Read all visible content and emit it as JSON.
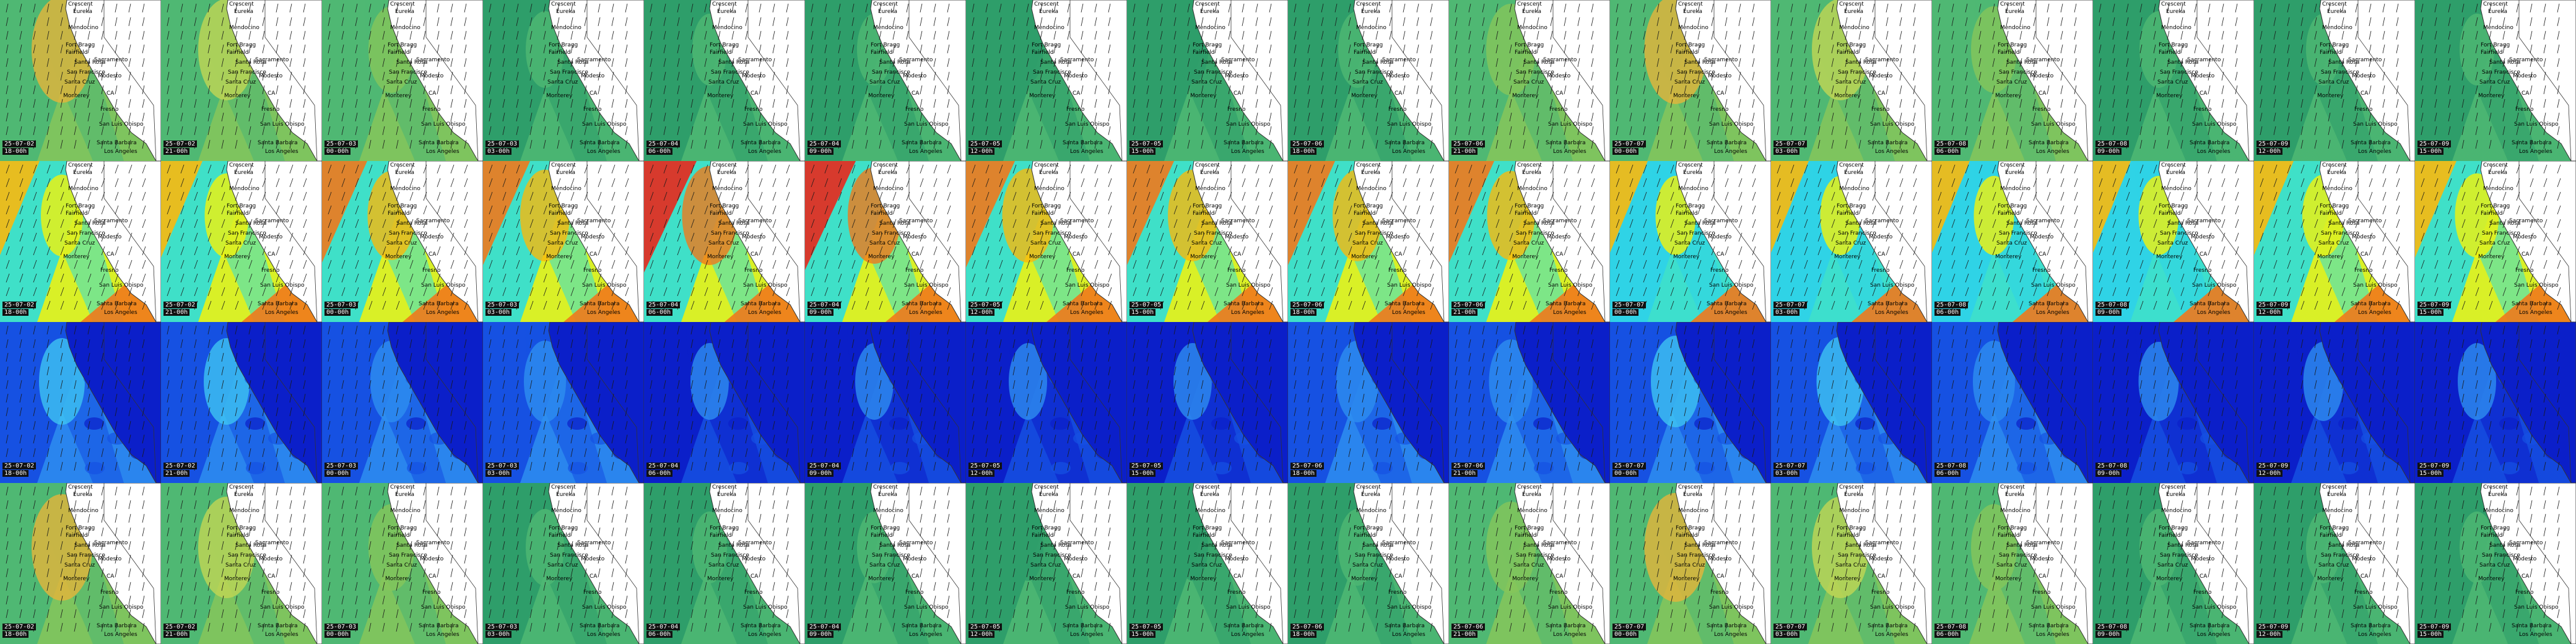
{
  "rows": [
    {
      "palette": "green",
      "frames": [
        {
          "date": "25-07-02",
          "time": "18-00h",
          "hot": 0.9
        },
        {
          "date": "25-07-02",
          "time": "21-00h",
          "hot": 0.8
        },
        {
          "date": "25-07-03",
          "time": "00-00h",
          "hot": 0.5
        },
        {
          "date": "25-07-03",
          "time": "03-00h",
          "hot": 0.3
        },
        {
          "date": "25-07-04",
          "time": "06-00h",
          "hot": 0.2
        },
        {
          "date": "25-07-04",
          "time": "09-00h",
          "hot": 0.2
        },
        {
          "date": "25-07-05",
          "time": "12-00h",
          "hot": 0.1
        },
        {
          "date": "25-07-05",
          "time": "15-00h",
          "hot": 0.1
        },
        {
          "date": "25-07-06",
          "time": "18-00h",
          "hot": 0.3
        },
        {
          "date": "25-07-06",
          "time": "21-00h",
          "hot": 0.6
        },
        {
          "date": "25-07-07",
          "time": "00-00h",
          "hot": 0.95
        },
        {
          "date": "25-07-07",
          "time": "03-00h",
          "hot": 0.8
        },
        {
          "date": "25-07-08",
          "time": "06-00h",
          "hot": 0.5
        },
        {
          "date": "25-07-08",
          "time": "09-00h",
          "hot": 0.3
        },
        {
          "date": "25-07-09",
          "time": "12-00h",
          "hot": 0.2
        },
        {
          "date": "25-07-09",
          "time": "15-00h",
          "hot": 0.2
        }
      ]
    },
    {
      "palette": "rainbow",
      "frames": [
        {
          "date": "25-07-02",
          "time": "18-00h",
          "hot": 0.4
        },
        {
          "date": "25-07-02",
          "time": "21-00h",
          "hot": 0.45
        },
        {
          "date": "25-07-03",
          "time": "00-00h",
          "hot": 0.55
        },
        {
          "date": "25-07-03",
          "time": "03-00h",
          "hot": 0.6
        },
        {
          "date": "25-07-04",
          "time": "06-00h",
          "hot": 0.75
        },
        {
          "date": "25-07-04",
          "time": "09-00h",
          "hot": 0.7
        },
        {
          "date": "25-07-05",
          "time": "12-00h",
          "hot": 0.65
        },
        {
          "date": "25-07-05",
          "time": "15-00h",
          "hot": 0.6
        },
        {
          "date": "25-07-06",
          "time": "18-00h",
          "hot": 0.6
        },
        {
          "date": "25-07-06",
          "time": "21-00h",
          "hot": 0.55
        },
        {
          "date": "25-07-07",
          "time": "00-00h",
          "hot": 0.35
        },
        {
          "date": "25-07-07",
          "time": "03-00h",
          "hot": 0.35
        },
        {
          "date": "25-07-08",
          "time": "06-00h",
          "hot": 0.35
        },
        {
          "date": "25-07-08",
          "time": "09-00h",
          "hot": 0.35
        },
        {
          "date": "25-07-09",
          "time": "12-00h",
          "hot": 0.4
        },
        {
          "date": "25-07-09",
          "time": "15-00h",
          "hot": 0.45
        }
      ]
    },
    {
      "palette": "blue",
      "frames": [
        {
          "date": "25-07-02",
          "time": "18-00h",
          "hot": 0.5
        },
        {
          "date": "25-07-02",
          "time": "21-00h",
          "hot": 0.5
        },
        {
          "date": "25-07-03",
          "time": "00-00h",
          "hot": 0.4
        },
        {
          "date": "25-07-03",
          "time": "03-00h",
          "hot": 0.4
        },
        {
          "date": "25-07-04",
          "time": "06-00h",
          "hot": 0.3
        },
        {
          "date": "25-07-04",
          "time": "09-00h",
          "hot": 0.3
        },
        {
          "date": "25-07-05",
          "time": "12-00h",
          "hot": 0.3
        },
        {
          "date": "25-07-05",
          "time": "15-00h",
          "hot": 0.3
        },
        {
          "date": "25-07-06",
          "time": "18-00h",
          "hot": 0.4
        },
        {
          "date": "25-07-06",
          "time": "21-00h",
          "hot": 0.45
        },
        {
          "date": "25-07-07",
          "time": "00-00h",
          "hot": 0.6
        },
        {
          "date": "25-07-07",
          "time": "03-00h",
          "hot": 0.55
        },
        {
          "date": "25-07-08",
          "time": "06-00h",
          "hot": 0.4
        },
        {
          "date": "25-07-08",
          "time": "09-00h",
          "hot": 0.35
        },
        {
          "date": "25-07-09",
          "time": "12-00h",
          "hot": 0.35
        },
        {
          "date": "25-07-09",
          "time": "15-00h",
          "hot": 0.3
        }
      ]
    },
    {
      "palette": "green",
      "frames": [
        {
          "date": "25-07-02",
          "time": "18-00h",
          "hot": 0.9
        },
        {
          "date": "25-07-02",
          "time": "21-00h",
          "hot": 0.8
        },
        {
          "date": "25-07-03",
          "time": "00-00h",
          "hot": 0.5
        },
        {
          "date": "25-07-03",
          "time": "03-00h",
          "hot": 0.3
        },
        {
          "date": "25-07-04",
          "time": "06-00h",
          "hot": 0.2
        },
        {
          "date": "25-07-04",
          "time": "09-00h",
          "hot": 0.2
        },
        {
          "date": "25-07-05",
          "time": "12-00h",
          "hot": 0.1
        },
        {
          "date": "25-07-05",
          "time": "15-00h",
          "hot": 0.1
        },
        {
          "date": "25-07-06",
          "time": "18-00h",
          "hot": 0.3
        },
        {
          "date": "25-07-06",
          "time": "21-00h",
          "hot": 0.6
        },
        {
          "date": "25-07-07",
          "time": "00-00h",
          "hot": 0.95
        },
        {
          "date": "25-07-07",
          "time": "03-00h",
          "hot": 0.8
        },
        {
          "date": "25-07-08",
          "time": "06-00h",
          "hot": 0.5
        },
        {
          "date": "25-07-08",
          "time": "09-00h",
          "hot": 0.3
        },
        {
          "date": "25-07-09",
          "time": "12-00h",
          "hot": 0.2
        },
        {
          "date": "25-07-09",
          "time": "15-00h",
          "hot": 0.2
        }
      ]
    }
  ],
  "cities": [
    "Crescent",
    "Eureka",
    "Mendocino",
    "Fort Bragg",
    "Fairfield",
    "Santa Rosa",
    "Sacramento",
    "San Francisco",
    "Modesto",
    "CA",
    "Santa Cruz",
    "Monterey",
    "Fresno",
    "San Luis Obispo",
    "Santa Barbara",
    "Los Angeles"
  ],
  "colors": {
    "green": [
      "#2e9e6a",
      "#4fb873",
      "#86c65a",
      "#c2d654",
      "#e6b43a"
    ],
    "rainbow": [
      "#2fd3e6",
      "#3fe0c8",
      "#f4f20a",
      "#f9b90d",
      "#f0791c",
      "#e8281c"
    ],
    "blue": [
      "#0b1fc9",
      "#1651e2",
      "#2e8ef0",
      "#3fc4f2",
      "#46e0d0",
      "#5ae870"
    ],
    "land": "#ffffff",
    "border": "#333333",
    "arrow": "#1a1a1a"
  }
}
